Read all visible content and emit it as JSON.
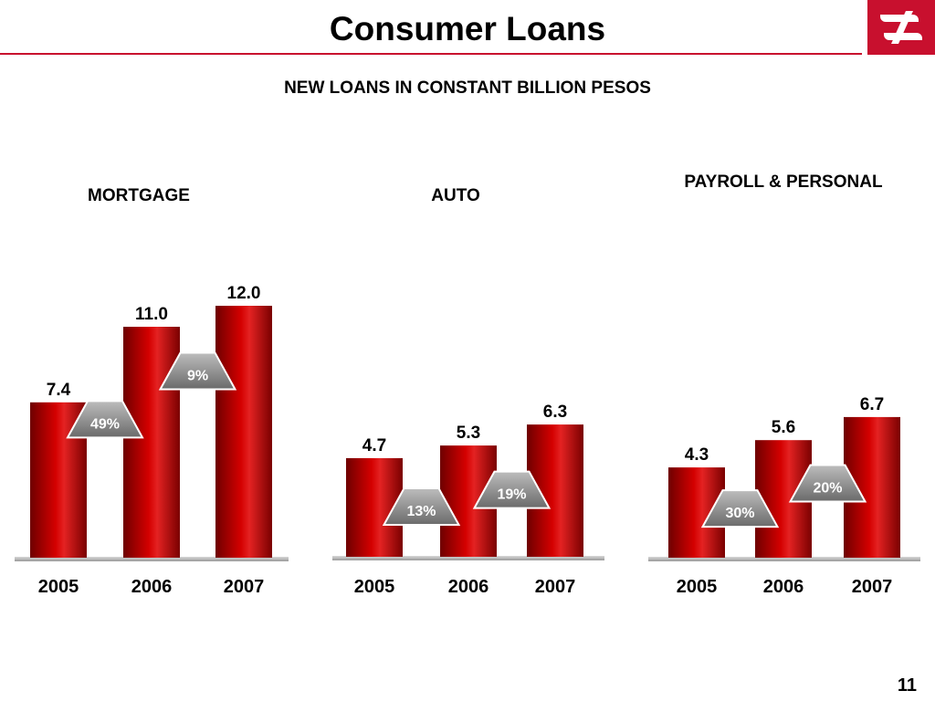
{
  "page": {
    "title": "Consumer Loans",
    "subtitle": "NEW LOANS IN CONSTANT BILLION PESOS",
    "page_number": "11"
  },
  "logo": {
    "icon": "bank-logo-icon",
    "color": "#c8102e"
  },
  "colors": {
    "bar_dark": "#7a0000",
    "bar_mid": "#cc0000",
    "bar_light": "#e83030",
    "badge": "#8a8a8a",
    "baseline": "#b8b8b8"
  },
  "chart_data": [
    {
      "type": "bar",
      "title": "MORTGAGE",
      "categories": [
        "2005",
        "2006",
        "2007"
      ],
      "values": [
        7.4,
        11.0,
        12.0
      ],
      "value_labels": [
        "7.4",
        "11.0",
        "12.0"
      ],
      "growth_labels": [
        "49%",
        "9%"
      ]
    },
    {
      "type": "bar",
      "title": "AUTO",
      "categories": [
        "2005",
        "2006",
        "2007"
      ],
      "values": [
        4.7,
        5.3,
        6.3
      ],
      "value_labels": [
        "4.7",
        "5.3",
        "6.3"
      ],
      "growth_labels": [
        "13%",
        "19%"
      ]
    },
    {
      "type": "bar",
      "title": "PAYROLL & PERSONAL",
      "categories": [
        "2005",
        "2006",
        "2007"
      ],
      "values": [
        4.3,
        5.6,
        6.7
      ],
      "value_labels": [
        "4.3",
        "5.6",
        "6.7"
      ],
      "growth_labels": [
        "30%",
        "20%"
      ]
    }
  ]
}
